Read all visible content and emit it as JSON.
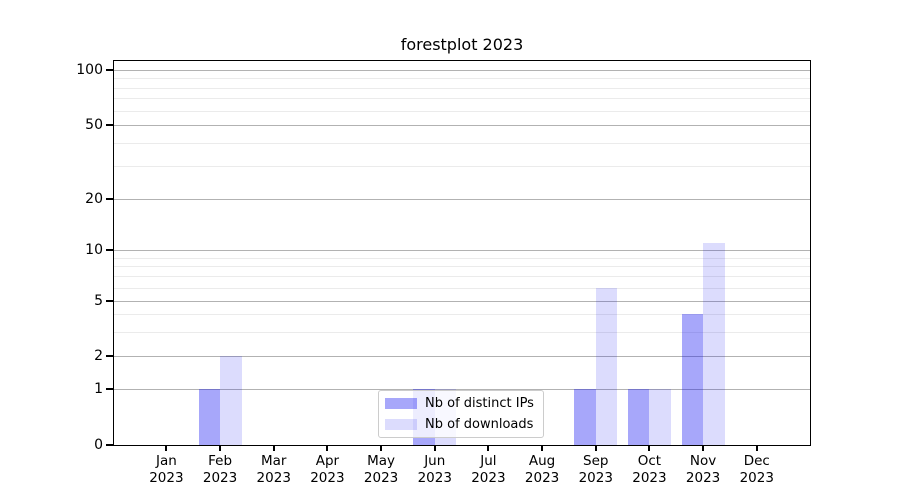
{
  "title": "forestplot 2023",
  "chart_data": {
    "type": "bar",
    "title": "forestplot 2023",
    "categories": [
      "Jan",
      "Feb",
      "Mar",
      "Apr",
      "May",
      "Jun",
      "Jul",
      "Aug",
      "Sep",
      "Oct",
      "Nov",
      "Dec"
    ],
    "year": "2023",
    "series": [
      {
        "name": "Nb of distinct IPs",
        "values": [
          0,
          1,
          0,
          0,
          0,
          1,
          0,
          0,
          1,
          1,
          4,
          0
        ],
        "color": "rgba(10,10,240,0.36)"
      },
      {
        "name": "Nb of downloads",
        "values": [
          0,
          2,
          0,
          0,
          0,
          1,
          0,
          0,
          6,
          1,
          11,
          0
        ],
        "color": "rgba(10,10,240,0.14)"
      }
    ],
    "y_axis": {
      "ticks": [
        0,
        1,
        2,
        5,
        10,
        20,
        50,
        100
      ],
      "minor_ticks": [
        3,
        4,
        6,
        7,
        8,
        9,
        30,
        40,
        60,
        70,
        80,
        90
      ],
      "scale": "log",
      "range": [
        0,
        100
      ]
    },
    "x_axis": {
      "label_line_2": "2023"
    },
    "legend": {
      "position": "lower center inside axes",
      "entries": [
        "Nb of distinct IPs",
        "Nb of downloads"
      ]
    },
    "grid": {
      "major_color": "#b2b2b2",
      "minor_color": "#ebebeb"
    },
    "background": "#ffffff"
  }
}
